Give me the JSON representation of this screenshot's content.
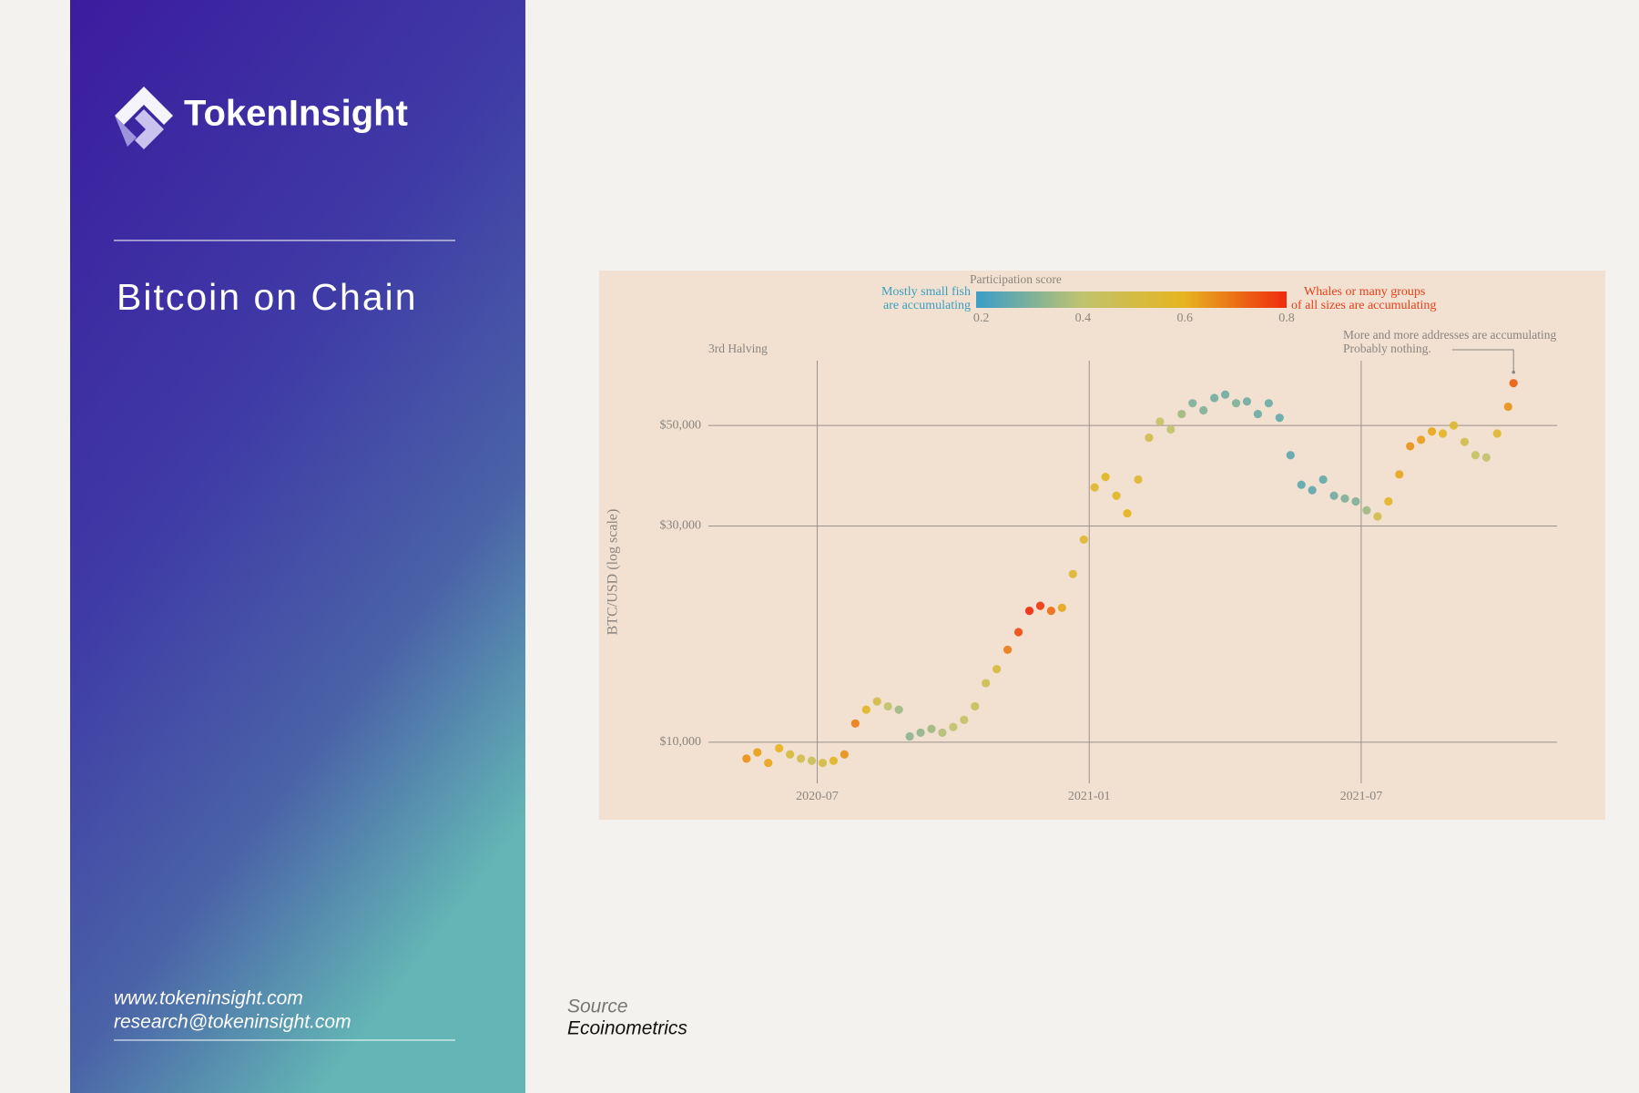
{
  "header": {
    "brand": "TokenInsight",
    "title": "Bitcoin on Chain"
  },
  "footer": {
    "website": "www.tokeninsight.com",
    "email": "research@tokeninsight.com"
  },
  "source": {
    "label": "Source",
    "name": "Ecoinometrics"
  },
  "chart_data": {
    "type": "scatter",
    "y_label": "BTC/USD (log scale)",
    "log_y": true,
    "grid": true,
    "xlim": [
      2020.3,
      2021.86
    ],
    "xticks": [
      {
        "value": 2020.5,
        "label": "2020-07"
      },
      {
        "value": 2021.0,
        "label": "2021-01"
      },
      {
        "value": 2021.5,
        "label": "2021-07"
      }
    ],
    "ylim": [
      8500,
      69500
    ],
    "yticks": [
      {
        "value": 10000,
        "label": "$10,000"
      },
      {
        "value": 30000,
        "label": "$30,000"
      },
      {
        "value": 50000,
        "label": "$50,000"
      }
    ],
    "colorbar": {
      "title": "Participation score",
      "range": [
        0.19,
        0.8
      ],
      "ticks": [
        0.2,
        0.4,
        0.6,
        0.8
      ],
      "low_label": [
        "Mostly small fish",
        "are accumulating"
      ],
      "high_label": [
        "Whales or many groups",
        "of all sizes are accumulating"
      ],
      "low_color": "#3a9fc2",
      "high_color": "#e8401a"
    },
    "colorscale": [
      [
        0.2,
        "#3f9fc4"
      ],
      [
        0.4,
        "#c1c36d"
      ],
      [
        0.6,
        "#e6b41e"
      ],
      [
        0.8,
        "#f02a0e"
      ]
    ],
    "annotations": {
      "halving": "3rd Halving",
      "note": [
        "More and more addresses are accumulating",
        "Probably nothing."
      ]
    },
    "x": [
      2020.37,
      2020.39,
      2020.41,
      2020.43,
      2020.45,
      2020.47,
      2020.49,
      2020.51,
      2020.53,
      2020.55,
      2020.57,
      2020.59,
      2020.61,
      2020.63,
      2020.65,
      2020.67,
      2020.69,
      2020.71,
      2020.73,
      2020.75,
      2020.77,
      2020.79,
      2020.81,
      2020.83,
      2020.85,
      2020.87,
      2020.89,
      2020.91,
      2020.93,
      2020.95,
      2020.97,
      2020.99,
      2021.01,
      2021.03,
      2021.05,
      2021.07,
      2021.09,
      2021.11,
      2021.13,
      2021.15,
      2021.17,
      2021.19,
      2021.21,
      2021.23,
      2021.25,
      2021.27,
      2021.29,
      2021.31,
      2021.33,
      2021.35,
      2021.37,
      2021.39,
      2021.41,
      2021.43,
      2021.45,
      2021.47,
      2021.49,
      2021.51,
      2021.53,
      2021.55,
      2021.57,
      2021.59,
      2021.61,
      2021.63,
      2021.65,
      2021.67,
      2021.69,
      2021.71,
      2021.73,
      2021.75,
      2021.77,
      2021.78
    ],
    "values": [
      9200,
      9500,
      9000,
      9700,
      9400,
      9200,
      9100,
      9000,
      9100,
      9400,
      11000,
      11800,
      12300,
      12000,
      11800,
      10300,
      10500,
      10700,
      10500,
      10800,
      11200,
      12000,
      13500,
      14500,
      16000,
      17500,
      19500,
      20000,
      19500,
      19800,
      23500,
      28000,
      36500,
      38500,
      35000,
      32000,
      38000,
      47000,
      51000,
      49000,
      53000,
      56000,
      54000,
      57500,
      58500,
      56000,
      56500,
      53000,
      56000,
      52000,
      43000,
      37000,
      36000,
      38000,
      35000,
      34500,
      34000,
      32500,
      31500,
      34000,
      39000,
      45000,
      46500,
      48500,
      48000,
      50000,
      46000,
      43000,
      42500,
      48000,
      55000,
      62000
    ],
    "scores": [
      0.65,
      0.63,
      0.62,
      0.6,
      0.52,
      0.48,
      0.45,
      0.5,
      0.58,
      0.65,
      0.68,
      0.58,
      0.5,
      0.4,
      0.35,
      0.32,
      0.33,
      0.35,
      0.38,
      0.4,
      0.42,
      0.44,
      0.47,
      0.52,
      0.68,
      0.75,
      0.8,
      0.78,
      0.7,
      0.62,
      0.55,
      0.55,
      0.56,
      0.58,
      0.58,
      0.6,
      0.55,
      0.48,
      0.42,
      0.4,
      0.35,
      0.3,
      0.3,
      0.28,
      0.28,
      0.3,
      0.28,
      0.27,
      0.27,
      0.26,
      0.25,
      0.25,
      0.25,
      0.26,
      0.28,
      0.3,
      0.3,
      0.35,
      0.48,
      0.58,
      0.62,
      0.65,
      0.63,
      0.62,
      0.58,
      0.55,
      0.48,
      0.42,
      0.4,
      0.55,
      0.65,
      0.72
    ]
  }
}
